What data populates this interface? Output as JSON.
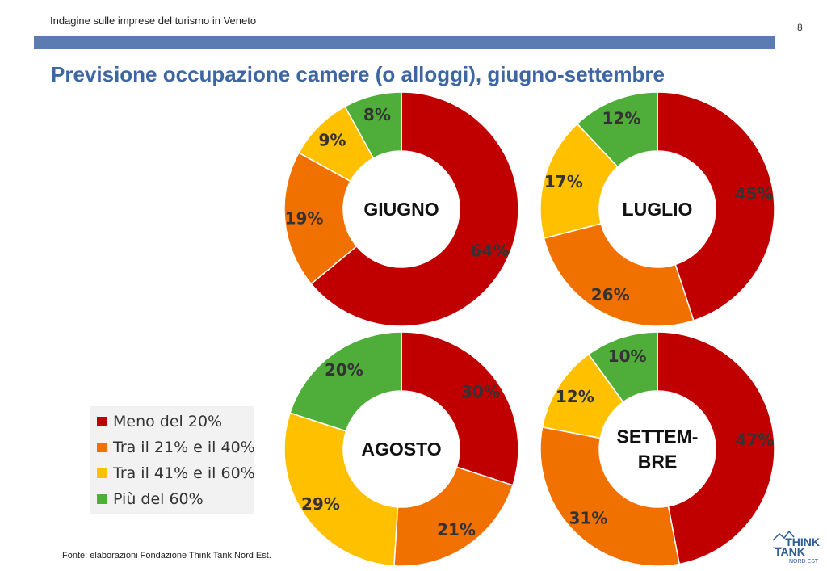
{
  "header": {
    "subtitle": "Indagine sulle imprese del turismo in Veneto",
    "page_number": "8"
  },
  "title": "Previsione occupazione camere (o alloggi), giugno-settembre",
  "source": "Fonte: elaborazioni Fondazione Think Tank Nord Est.",
  "logo": {
    "line1": "THINK",
    "line2": "TANK",
    "line3": "NORD EST"
  },
  "colors": {
    "meno_20": "#c00000",
    "tra_21_40": "#f07000",
    "tra_41_60": "#ffc000",
    "piu_60": "#4fae3a"
  },
  "legend": [
    {
      "label": "Meno del 20%",
      "color": "#c00000"
    },
    {
      "label": "Tra il 21% e il 40%",
      "color": "#f07000"
    },
    {
      "label": "Tra il 41% e il 60%",
      "color": "#ffc000"
    },
    {
      "label": "Più del 60%",
      "color": "#4fae3a"
    }
  ],
  "chart_data": [
    {
      "type": "pie",
      "title": "GIUGNO",
      "categories": [
        "Meno del 20%",
        "Tra il 21% e il 40%",
        "Tra il 41% e il 60%",
        "Più del 60%"
      ],
      "values": [
        64,
        19,
        9,
        8
      ],
      "labels": [
        "64%",
        "19%",
        "9%",
        "8%"
      ]
    },
    {
      "type": "pie",
      "title": "LUGLIO",
      "categories": [
        "Meno del 20%",
        "Tra il 21% e il 40%",
        "Tra il 41% e il 60%",
        "Più del 60%"
      ],
      "values": [
        45,
        26,
        17,
        12
      ],
      "labels": [
        "45%",
        "26%",
        "17%",
        "12%"
      ]
    },
    {
      "type": "pie",
      "title": "AGOSTO",
      "categories": [
        "Meno del 20%",
        "Tra il 21% e il 40%",
        "Tra il 41% e il 60%",
        "Più del 60%"
      ],
      "values": [
        30,
        21,
        29,
        20
      ],
      "labels": [
        "30%",
        "21%",
        "29%",
        "20%"
      ]
    },
    {
      "type": "pie",
      "title": "SETTEM-\nBRE",
      "categories": [
        "Meno del 20%",
        "Tra il 21% e il 40%",
        "Tra il 41% e il 60%",
        "Più del 60%"
      ],
      "values": [
        47,
        31,
        12,
        10
      ],
      "labels": [
        "47%",
        "31%",
        "12%",
        "10%"
      ]
    }
  ]
}
